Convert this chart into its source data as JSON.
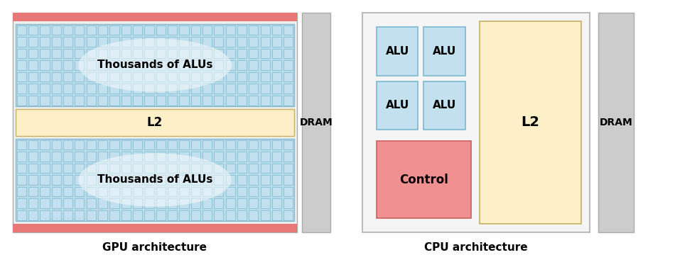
{
  "fig_width": 9.5,
  "fig_height": 3.77,
  "dpi": 100,
  "bg_color": "#ffffff",
  "gpu_label": "GPU architecture",
  "cpu_label": "CPU architecture",
  "dram_label": "DRAM",
  "alu_label": "ALU",
  "l2_label": "L2",
  "control_label": "Control",
  "thousands_label": "Thousands of ALUs",
  "color_alu_cell_face": "#c2e0ee",
  "color_alu_cell_edge": "#7ab8d0",
  "color_l2_face": "#fdefc8",
  "color_l2_edge": "#c8b060",
  "color_red_bar": "#e87878",
  "color_dram_face": "#cccccc",
  "color_dram_edge": "#aaaaaa",
  "color_cpu_outer_face": "#f5f5f5",
  "color_cpu_outer_edge": "#bbbbbb",
  "color_control_face": "#f09090",
  "color_control_edge": "#cc6060",
  "color_grid_bg": "#b8dce8",
  "color_grid_bg_edge": "#88b8cc",
  "gpu_grid_cols": 24,
  "gpu_grid_rows": 7,
  "glow_alpha": 0.5
}
